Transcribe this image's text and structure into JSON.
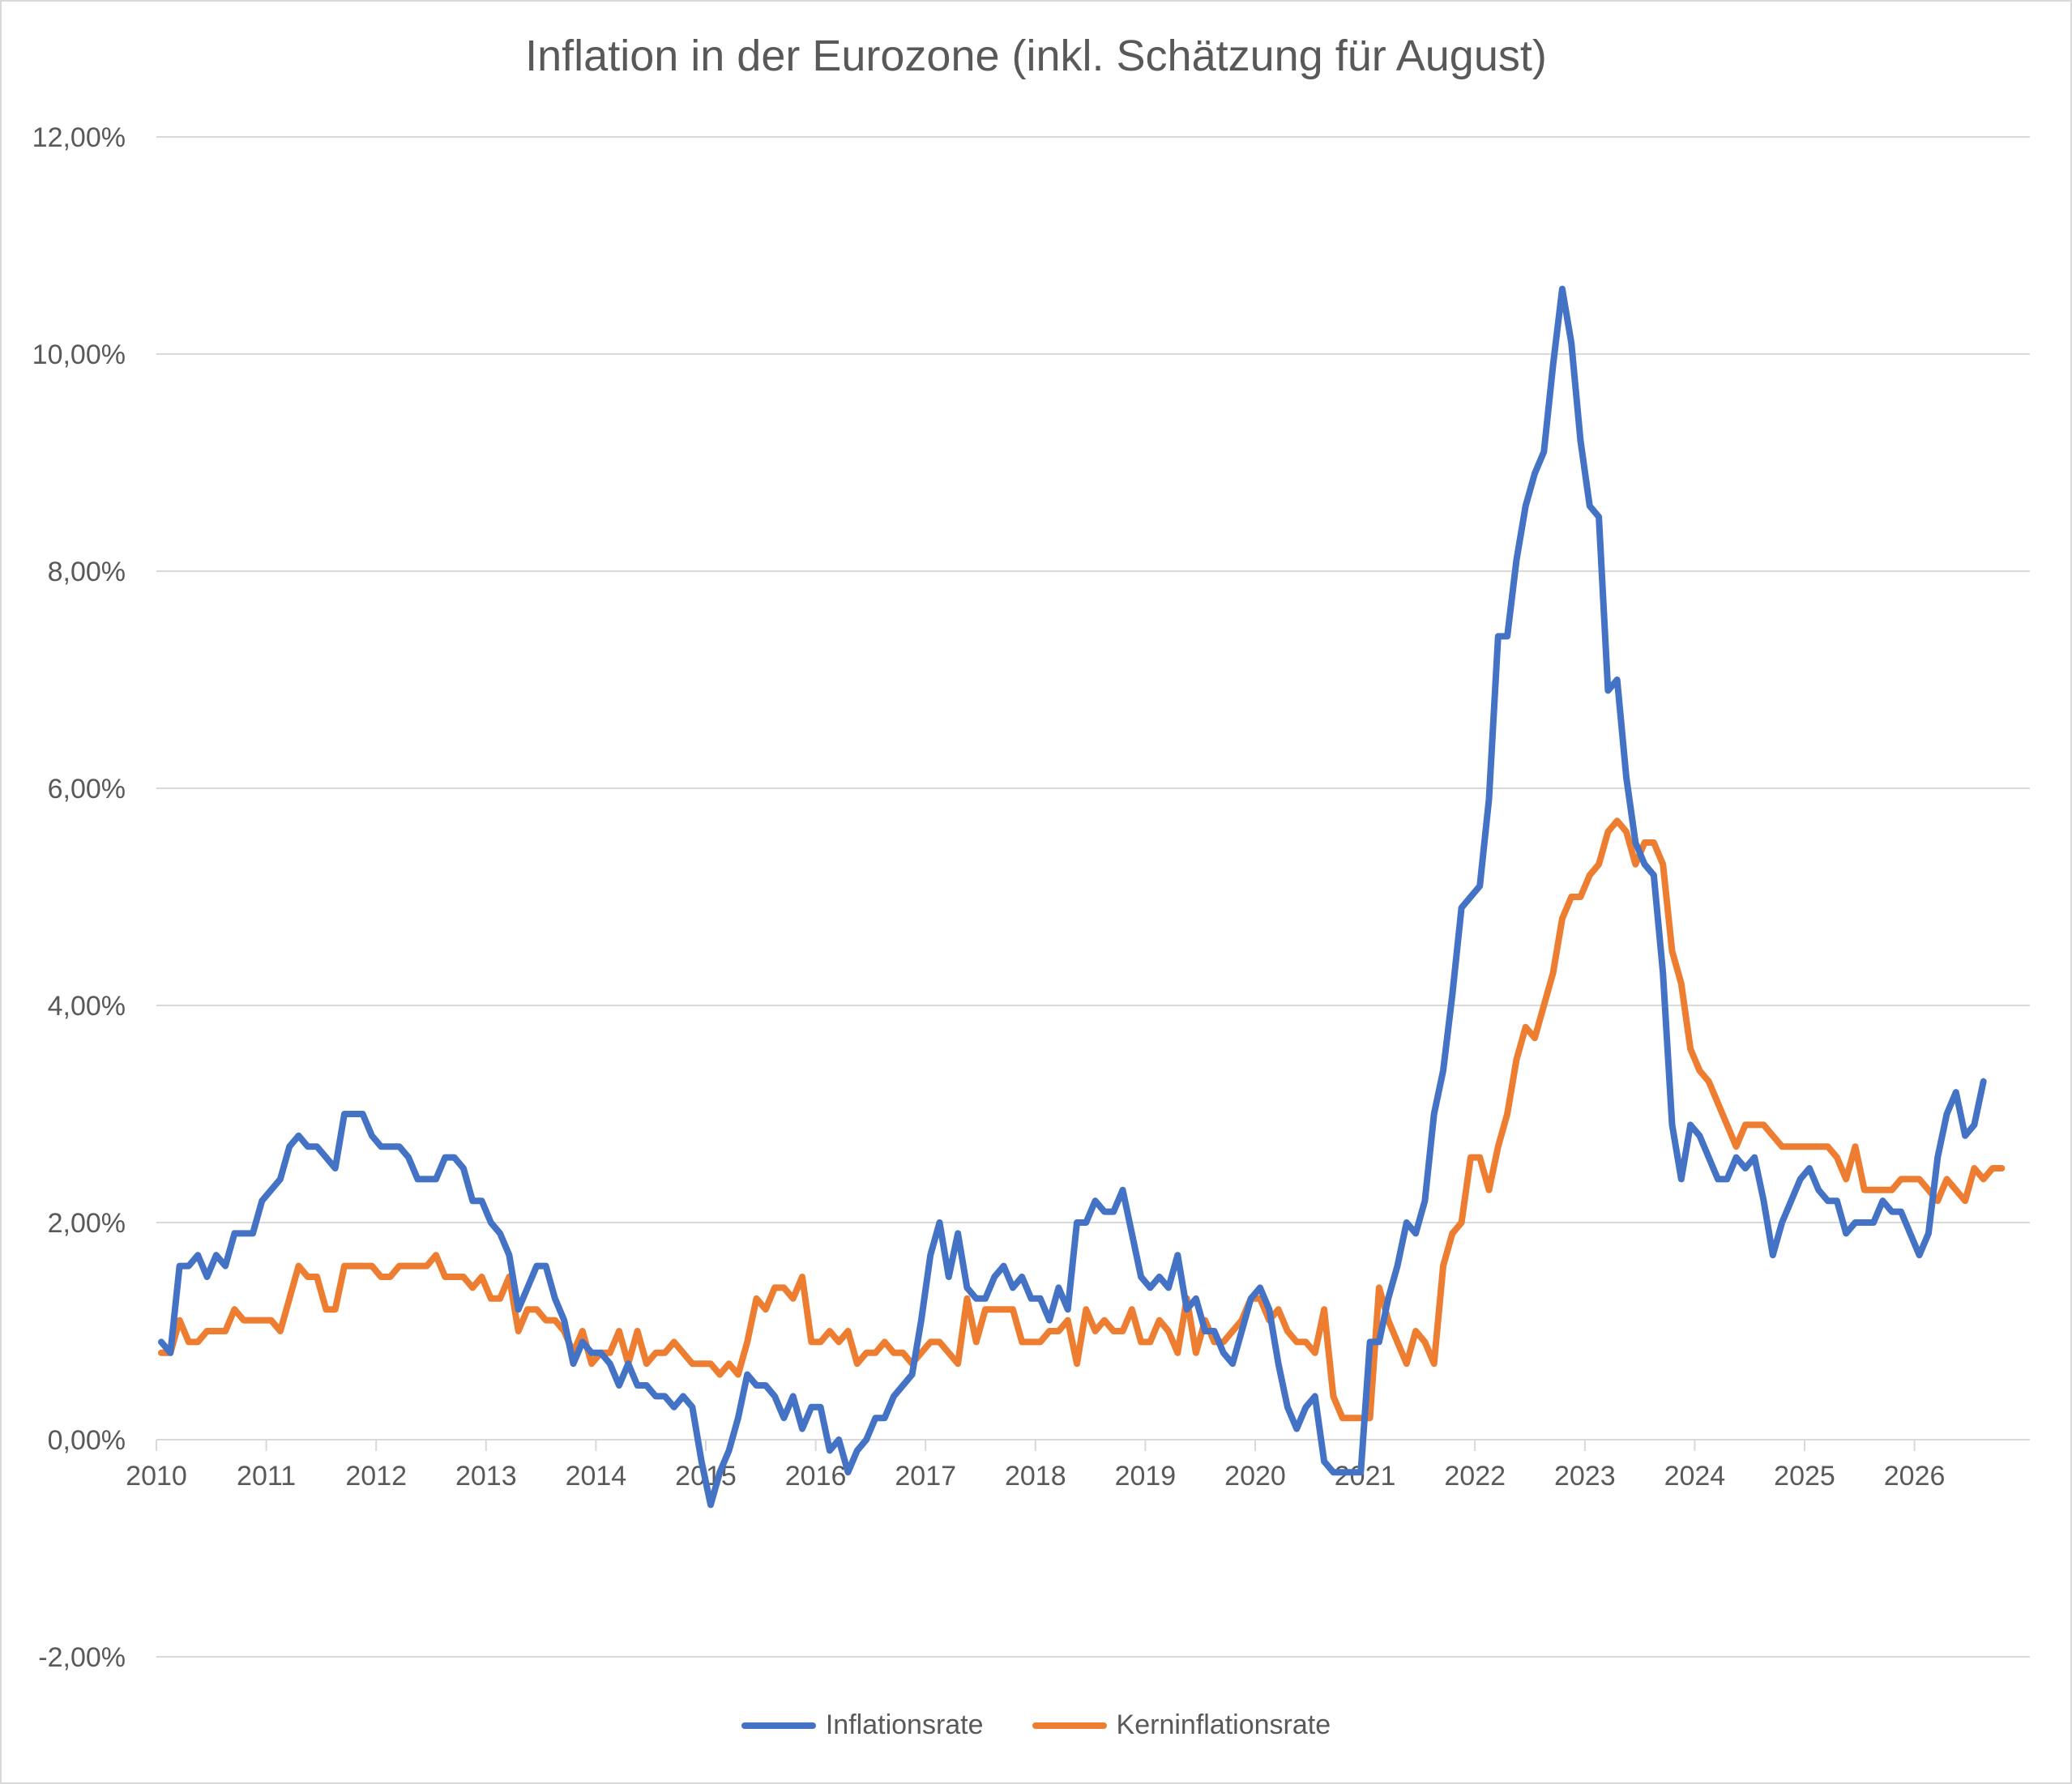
{
  "chart_data": {
    "type": "line",
    "title": "Inflation in der Eurozone (inkl. Schätzung für August)",
    "xlabel": "",
    "ylabel": "",
    "start": "2010-01",
    "x_ticks": [
      "2010",
      "2011",
      "2012",
      "2013",
      "2014",
      "2015",
      "2016",
      "2017",
      "2018",
      "2019",
      "2020",
      "2021",
      "2022",
      "2023",
      "2024",
      "2025",
      "2026"
    ],
    "y_ticks": [
      "-2,00%",
      "0,00%",
      "2,00%",
      "4,00%",
      "6,00%",
      "8,00%",
      "10,00%",
      "12,00%"
    ],
    "ylim": [
      -2,
      12
    ],
    "y_unit": "%",
    "grid": true,
    "legend": "bottom",
    "series": [
      {
        "name": "Inflationsrate",
        "color": "#4472C4",
        "values": [
          0.9,
          0.8,
          1.6,
          1.6,
          1.7,
          1.5,
          1.7,
          1.6,
          1.9,
          1.9,
          1.9,
          2.2,
          2.3,
          2.4,
          2.7,
          2.8,
          2.7,
          2.7,
          2.6,
          2.5,
          3.0,
          3.0,
          3.0,
          2.8,
          2.7,
          2.7,
          2.7,
          2.6,
          2.4,
          2.4,
          2.4,
          2.6,
          2.6,
          2.5,
          2.2,
          2.2,
          2.0,
          1.9,
          1.7,
          1.2,
          1.4,
          1.6,
          1.6,
          1.3,
          1.1,
          0.7,
          0.9,
          0.8,
          0.8,
          0.7,
          0.5,
          0.7,
          0.5,
          0.5,
          0.4,
          0.4,
          0.3,
          0.4,
          0.3,
          -0.2,
          -0.6,
          -0.3,
          -0.1,
          0.2,
          0.6,
          0.5,
          0.5,
          0.4,
          0.2,
          0.4,
          0.1,
          0.3,
          0.3,
          -0.1,
          0.0,
          -0.3,
          -0.1,
          0.0,
          0.2,
          0.2,
          0.4,
          0.5,
          0.6,
          1.1,
          1.7,
          2.0,
          1.5,
          1.9,
          1.4,
          1.3,
          1.3,
          1.5,
          1.6,
          1.4,
          1.5,
          1.3,
          1.3,
          1.1,
          1.4,
          1.2,
          2.0,
          2.0,
          2.2,
          2.1,
          2.1,
          2.3,
          1.9,
          1.5,
          1.4,
          1.5,
          1.4,
          1.7,
          1.2,
          1.3,
          1.0,
          1.0,
          0.8,
          0.7,
          1.0,
          1.3,
          1.4,
          1.2,
          0.7,
          0.3,
          0.1,
          0.3,
          0.4,
          -0.2,
          -0.3,
          -0.3,
          -0.3,
          -0.3,
          0.9,
          0.9,
          1.3,
          1.6,
          2.0,
          1.9,
          2.2,
          3.0,
          3.4,
          4.1,
          4.9,
          5.0,
          5.1,
          5.9,
          7.4,
          7.4,
          8.1,
          8.6,
          8.9,
          9.1,
          9.9,
          10.6,
          10.1,
          9.2,
          8.6,
          8.5,
          6.9,
          7.0,
          6.1,
          5.5,
          5.3,
          5.2,
          4.3,
          2.9,
          2.4,
          2.9,
          2.8,
          2.6,
          2.4,
          2.4,
          2.6,
          2.5,
          2.6,
          2.2,
          1.7,
          2.0,
          2.2,
          2.4,
          2.5,
          2.3,
          2.2,
          2.2,
          1.9,
          2.0,
          2.0,
          2.0,
          2.2,
          2.1,
          2.1,
          1.9,
          1.7,
          1.9,
          2.6,
          3.0,
          3.2,
          2.8,
          2.9,
          3.3
        ]
      },
      {
        "name": "Kerninflationsrate",
        "color": "#ED7D31",
        "values": [
          0.8,
          0.8,
          1.1,
          0.9,
          0.9,
          1.0,
          1.0,
          1.0,
          1.2,
          1.1,
          1.1,
          1.1,
          1.1,
          1.0,
          1.3,
          1.6,
          1.5,
          1.5,
          1.2,
          1.2,
          1.6,
          1.6,
          1.6,
          1.6,
          1.5,
          1.5,
          1.6,
          1.6,
          1.6,
          1.6,
          1.7,
          1.5,
          1.5,
          1.5,
          1.4,
          1.5,
          1.3,
          1.3,
          1.5,
          1.0,
          1.2,
          1.2,
          1.1,
          1.1,
          1.0,
          0.8,
          1.0,
          0.7,
          0.8,
          0.8,
          1.0,
          0.7,
          1.0,
          0.7,
          0.8,
          0.8,
          0.9,
          0.8,
          0.7,
          0.7,
          0.7,
          0.6,
          0.7,
          0.6,
          0.9,
          1.3,
          1.2,
          1.4,
          1.4,
          1.3,
          1.5,
          0.9,
          0.9,
          1.0,
          0.9,
          1.0,
          0.7,
          0.8,
          0.8,
          0.9,
          0.8,
          0.8,
          0.7,
          0.8,
          0.9,
          0.9,
          0.8,
          0.7,
          1.3,
          0.9,
          1.2,
          1.2,
          1.2,
          1.2,
          0.9,
          0.9,
          0.9,
          1.0,
          1.0,
          1.1,
          0.7,
          1.2,
          1.0,
          1.1,
          1.0,
          1.0,
          1.2,
          0.9,
          0.9,
          1.1,
          1.0,
          0.8,
          1.3,
          0.8,
          1.1,
          0.9,
          0.9,
          1.0,
          1.1,
          1.3,
          1.3,
          1.1,
          1.2,
          1.0,
          0.9,
          0.9,
          0.8,
          1.2,
          0.4,
          0.2,
          0.2,
          0.2,
          0.2,
          1.4,
          1.1,
          0.9,
          0.7,
          1.0,
          0.9,
          0.7,
          1.6,
          1.9,
          2.0,
          2.6,
          2.6,
          2.3,
          2.7,
          3.0,
          3.5,
          3.8,
          3.7,
          4.0,
          4.3,
          4.8,
          5.0,
          5.0,
          5.2,
          5.3,
          5.6,
          5.7,
          5.6,
          5.3,
          5.5,
          5.5,
          5.3,
          4.5,
          4.2,
          3.6,
          3.4,
          3.3,
          3.1,
          2.9,
          2.7,
          2.9,
          2.9,
          2.9,
          2.8,
          2.7,
          2.7,
          2.7,
          2.7,
          2.7,
          2.7,
          2.6,
          2.4,
          2.7,
          2.3,
          2.3,
          2.3,
          2.3,
          2.4,
          2.4,
          2.4,
          2.3,
          2.2,
          2.4,
          2.3,
          2.2,
          2.5,
          2.4,
          2.5,
          2.5
        ]
      }
    ]
  }
}
